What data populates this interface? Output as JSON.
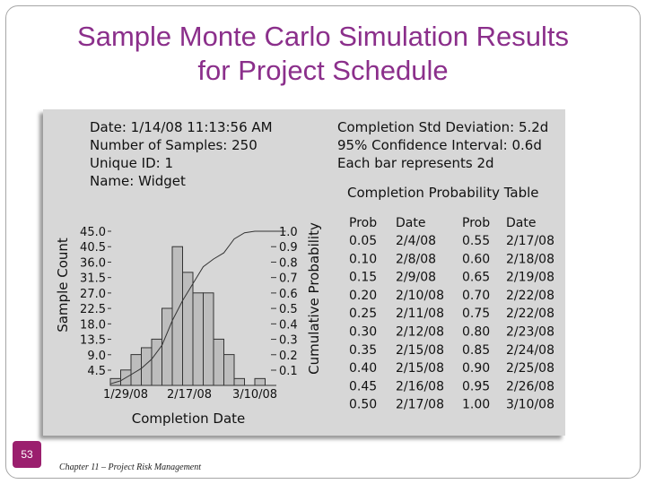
{
  "slide": {
    "title_line1": "Sample Monte Carlo Simulation Results",
    "title_line2": "for Project Schedule",
    "page_number": "53",
    "footer": "Chapter 11 – Project Risk Management",
    "colors": {
      "title": "#8b2f8b",
      "badge": "#9b1f6e",
      "panel": "#d7d7d7",
      "bar_fill": "#bdbdbd"
    }
  },
  "info": {
    "left": [
      "Date: 1/14/08 11:13:56 AM",
      "Number of Samples: 250",
      "Unique ID: 1",
      "Name: Widget"
    ],
    "right": [
      "Completion Std Deviation: 5.2d",
      "95% Confidence Interval: 0.6d",
      "Each bar represents 2d"
    ]
  },
  "table": {
    "title": "Completion Probability Table",
    "headers": [
      "Prob",
      "Date",
      "Prob",
      "Date"
    ],
    "left_rows": [
      [
        "0.05",
        "2/4/08"
      ],
      [
        "0.10",
        "2/8/08"
      ],
      [
        "0.15",
        "2/9/08"
      ],
      [
        "0.20",
        "2/10/08"
      ],
      [
        "0.25",
        "2/11/08"
      ],
      [
        "0.30",
        "2/12/08"
      ],
      [
        "0.35",
        "2/15/08"
      ],
      [
        "0.40",
        "2/15/08"
      ],
      [
        "0.45",
        "2/16/08"
      ],
      [
        "0.50",
        "2/17/08"
      ]
    ],
    "right_rows": [
      [
        "0.55",
        "2/17/08"
      ],
      [
        "0.60",
        "2/18/08"
      ],
      [
        "0.65",
        "2/19/08"
      ],
      [
        "0.70",
        "2/22/08"
      ],
      [
        "0.75",
        "2/22/08"
      ],
      [
        "0.80",
        "2/23/08"
      ],
      [
        "0.85",
        "2/24/08"
      ],
      [
        "0.90",
        "2/25/08"
      ],
      [
        "0.95",
        "2/26/08"
      ],
      [
        "1.00",
        "3/10/08"
      ]
    ]
  },
  "chart_data": {
    "type": "bar",
    "xlabel": "Completion Date",
    "ylabel": "Sample Count",
    "y2label": "Cumulative Probability",
    "x_tick_labels": [
      "1/29/08",
      "2/17/08",
      "3/10/08"
    ],
    "y_ticks": [
      "45.0",
      "40.5",
      "36.0",
      "31.5",
      "27.0",
      "22.5",
      "18.0",
      "13.5",
      "9.0",
      "4.5"
    ],
    "y2_ticks": [
      "1.0",
      "0.9",
      "0.8",
      "0.7",
      "0.6",
      "0.5",
      "0.4",
      "0.3",
      "0.2",
      "0.1"
    ],
    "ylim": [
      0,
      45
    ],
    "y2lim": [
      0,
      1
    ],
    "bin_days": 2,
    "values": [
      2,
      4.5,
      9,
      11,
      13.5,
      22.5,
      40.5,
      33,
      27,
      27,
      13.5,
      9,
      2,
      0,
      2
    ],
    "cumulative": [
      0.01,
      0.03,
      0.07,
      0.11,
      0.17,
      0.26,
      0.42,
      0.55,
      0.66,
      0.77,
      0.82,
      0.86,
      0.95,
      0.99,
      1.0,
      1.0,
      1.0,
      1.0
    ],
    "grid": false
  }
}
